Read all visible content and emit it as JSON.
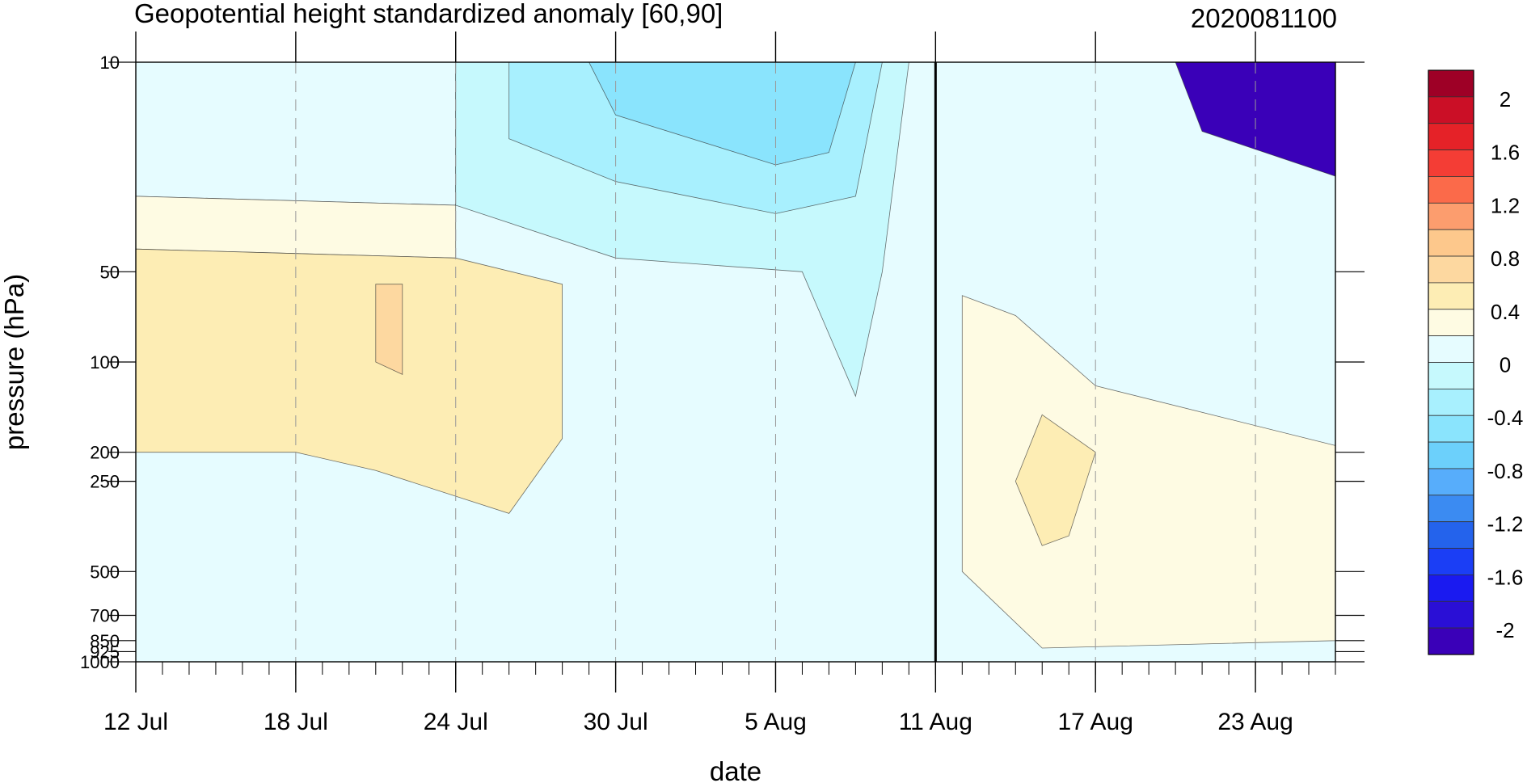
{
  "chart_data": {
    "type": "heatmap",
    "title": "Geopotential height standardized anomaly [60,90]",
    "title_right": "2020081100",
    "xlabel": "date",
    "ylabel": "pressure (hPa)",
    "x_ticks": [
      "12 Jul",
      "18 Jul",
      "24 Jul",
      "30 Jul",
      "5 Aug",
      "11 Aug",
      "17 Aug",
      "23 Aug"
    ],
    "x_range": [
      "12 Jul",
      "26 Aug"
    ],
    "marked_date": "11 Aug",
    "y_scale": "log",
    "y_inverted": true,
    "y_range": [
      1000,
      10
    ],
    "y_ticks": [
      "10",
      "50",
      "100",
      "200",
      "250",
      "500",
      "700",
      "850",
      "925",
      "1000"
    ],
    "colorbar": {
      "labels": [
        "2",
        "1.6",
        "1.2",
        "0.8",
        "0.4",
        "0",
        "-0.4",
        "-0.8",
        "-1.2",
        "-1.6",
        "-2"
      ],
      "levels": [
        -2.2,
        -2.0,
        -1.8,
        -1.6,
        -1.4,
        -1.2,
        -1.0,
        -0.8,
        -0.6,
        -0.4,
        -0.2,
        0.0,
        0.2,
        0.4,
        0.6,
        0.8,
        1.0,
        1.2,
        1.4,
        1.6,
        1.8,
        2.0,
        2.2
      ],
      "colors": [
        "#9e0026",
        "#cb0f26",
        "#e52228",
        "#f43d35",
        "#fb6a4a",
        "#fc9d6e",
        "#fdc88c",
        "#fdd8a0",
        "#fdedb4",
        "#fefbe3",
        "#e6fcff",
        "#c6f9fd",
        "#a8f0fe",
        "#8ae4fd",
        "#6cd0fb",
        "#57adfb",
        "#3b8bf2",
        "#2463ec",
        "#1b3ef5",
        "#1a1af0",
        "#2a0fd6",
        "#3a00b8"
      ]
    },
    "grid": "dashed vertical lines at date ticks",
    "regions": [
      {
        "name": "anomaly 0 to 0.2 (top-left)",
        "level": 0.1,
        "points": [
          [
            "12 Jul",
            10
          ],
          [
            "24 Jul",
            10
          ],
          [
            "24 Jul",
            30
          ],
          [
            "12 Jul",
            28
          ]
        ]
      },
      {
        "name": "anomaly 0.2 to 0.4 (left upper)",
        "level": 0.3,
        "points": [
          [
            "12 Jul",
            28
          ],
          [
            "24 Jul",
            30
          ],
          [
            "24 Jul",
            45
          ],
          [
            "12 Jul",
            42
          ]
        ]
      },
      {
        "name": "anomaly 0.4 to 0.6 (left middle)",
        "level": 0.5,
        "points": [
          [
            "12 Jul",
            42
          ],
          [
            "24 Jul",
            45
          ],
          [
            "28 Jul",
            55
          ],
          [
            "28 Jul",
            180
          ],
          [
            "26 Jul",
            320
          ],
          [
            "21 Jul",
            230
          ],
          [
            "18 Jul",
            200
          ],
          [
            "12 Jul",
            200
          ]
        ]
      },
      {
        "name": "anomaly 0.6 to 0.8 (left embedded)",
        "level": 0.7,
        "points": [
          [
            "22 Jul",
            55
          ],
          [
            "22 Jul",
            110
          ],
          [
            "21 Jul",
            100
          ],
          [
            "21 Jul",
            55
          ]
        ]
      },
      {
        "name": "anomaly -0.2 to 0 (top middle)",
        "level": -0.1,
        "points": [
          [
            "24 Jul",
            10
          ],
          [
            "10 Aug",
            10
          ],
          [
            "9 Aug",
            50
          ],
          [
            "8 Aug",
            130
          ],
          [
            "6 Aug",
            50
          ],
          [
            "30 Jul",
            45
          ],
          [
            "24 Jul",
            30
          ]
        ]
      },
      {
        "name": "anomaly -0.4 to -0.2 (top middle)",
        "level": -0.3,
        "points": [
          [
            "26 Jul",
            10
          ],
          [
            "9 Aug",
            10
          ],
          [
            "8 Aug",
            28
          ],
          [
            "5 Aug",
            32
          ],
          [
            "30 Jul",
            25
          ],
          [
            "26 Jul",
            18
          ]
        ]
      },
      {
        "name": "anomaly -0.6 to -0.4 (top middle)",
        "level": -0.5,
        "points": [
          [
            "29 Jul",
            10
          ],
          [
            "8 Aug",
            10
          ],
          [
            "7 Aug",
            20
          ],
          [
            "5 Aug",
            22
          ],
          [
            "30 Jul",
            15
          ]
        ]
      },
      {
        "name": "anomaly 0.2 to 0.4 (right middle)",
        "level": 0.3,
        "points": [
          [
            "12 Aug",
            60
          ],
          [
            "14 Aug",
            70
          ],
          [
            "17 Aug",
            120
          ],
          [
            "26 Aug",
            190
          ],
          [
            "26 Aug",
            850
          ],
          [
            "15 Aug",
            900
          ],
          [
            "12 Aug",
            500
          ]
        ]
      },
      {
        "name": "anomaly 0.4 to 0.6 (right embedded)",
        "level": 0.5,
        "points": [
          [
            "15 Aug",
            150
          ],
          [
            "17 Aug",
            200
          ],
          [
            "16 Aug",
            380
          ],
          [
            "15 Aug",
            410
          ],
          [
            "14 Aug",
            250
          ]
        ]
      },
      {
        "name": "anomaly -2.2 to -2.0 (top-right)",
        "level": -2.1,
        "points": [
          [
            "20 Aug",
            10
          ],
          [
            "26 Aug",
            10
          ],
          [
            "26 Aug",
            24
          ],
          [
            "21 Aug",
            17
          ]
        ]
      }
    ]
  }
}
